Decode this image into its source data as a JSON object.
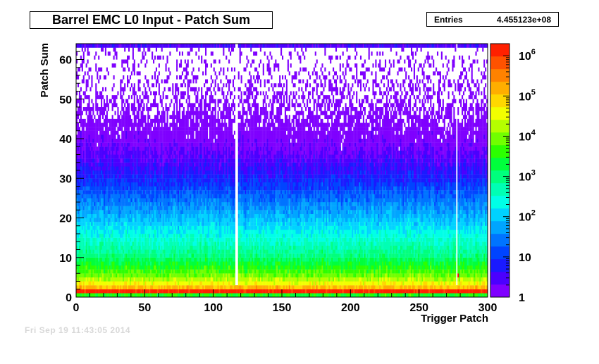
{
  "header": {
    "title": "Barrel EMC L0 Input - Patch Sum",
    "stats_label": "Entries",
    "stats_value": "4.455123e+08"
  },
  "footnote": "Fri Sep 19 11:43:05 2014",
  "colors": {
    "palette": [
      "#7f00ff",
      "#4b00ff",
      "#1a1aff",
      "#0044ff",
      "#0074ff",
      "#00a5ff",
      "#00d2ff",
      "#00ffe7",
      "#00ffb4",
      "#00ff7d",
      "#00ff3c",
      "#2cff00",
      "#71ff00",
      "#b5ff00",
      "#f2ff00",
      "#ffd800",
      "#ffae00",
      "#ff8200",
      "#ff5200",
      "#ff2000"
    ],
    "peak": "#ff0000",
    "frame": "#000000"
  },
  "chart_data": {
    "type": "heatmap",
    "title": "Barrel EMC L0 Input - Patch Sum",
    "xlabel": "Trigger Patch",
    "ylabel": "Patch Sum",
    "xlim": [
      0,
      300
    ],
    "ylim": [
      0,
      64
    ],
    "x_bins": 300,
    "y_bins": 64,
    "x_ticks": [
      "0",
      "50",
      "100",
      "150",
      "200",
      "250",
      "300"
    ],
    "y_ticks": [
      "0",
      "10",
      "20",
      "30",
      "40",
      "50",
      "60"
    ],
    "z_scale": "log",
    "zlim": [
      1,
      2000000
    ],
    "z_ticks": [
      {
        "base": "1",
        "exp": "",
        "value": 1
      },
      {
        "base": "10",
        "exp": "",
        "value": 10
      },
      {
        "base": "10",
        "exp": "2",
        "value": 100
      },
      {
        "base": "10",
        "exp": "3",
        "value": 1000
      },
      {
        "base": "10",
        "exp": "4",
        "value": 10000
      },
      {
        "base": "10",
        "exp": "5",
        "value": 100000
      },
      {
        "base": "10",
        "exp": "6",
        "value": 1000000
      }
    ],
    "entries": 445512300,
    "profile_by_patch_sum": [
      {
        "y": 0,
        "count": 3000
      },
      {
        "y": 1,
        "count": 1500000
      },
      {
        "y": 2,
        "count": 120000
      },
      {
        "y": 3,
        "count": 40000
      },
      {
        "y": 5,
        "count": 8000
      },
      {
        "y": 10,
        "count": 900
      },
      {
        "y": 15,
        "count": 250
      },
      {
        "y": 20,
        "count": 70
      },
      {
        "y": 25,
        "count": 20
      },
      {
        "y": 30,
        "count": 6
      },
      {
        "y": 35,
        "count": 2.5
      },
      {
        "y": 40,
        "count": 1.2
      },
      {
        "y": 50,
        "count": 0.4
      },
      {
        "y": 62,
        "count": 0.15
      },
      {
        "y": 63,
        "count": 3
      }
    ],
    "hot_patches": [
      {
        "x": 278,
        "y": 1,
        "count": 2000000
      },
      {
        "x": 278,
        "y": 5,
        "count": 120000
      }
    ],
    "dead_patches": [
      116,
      117,
      277
    ]
  }
}
